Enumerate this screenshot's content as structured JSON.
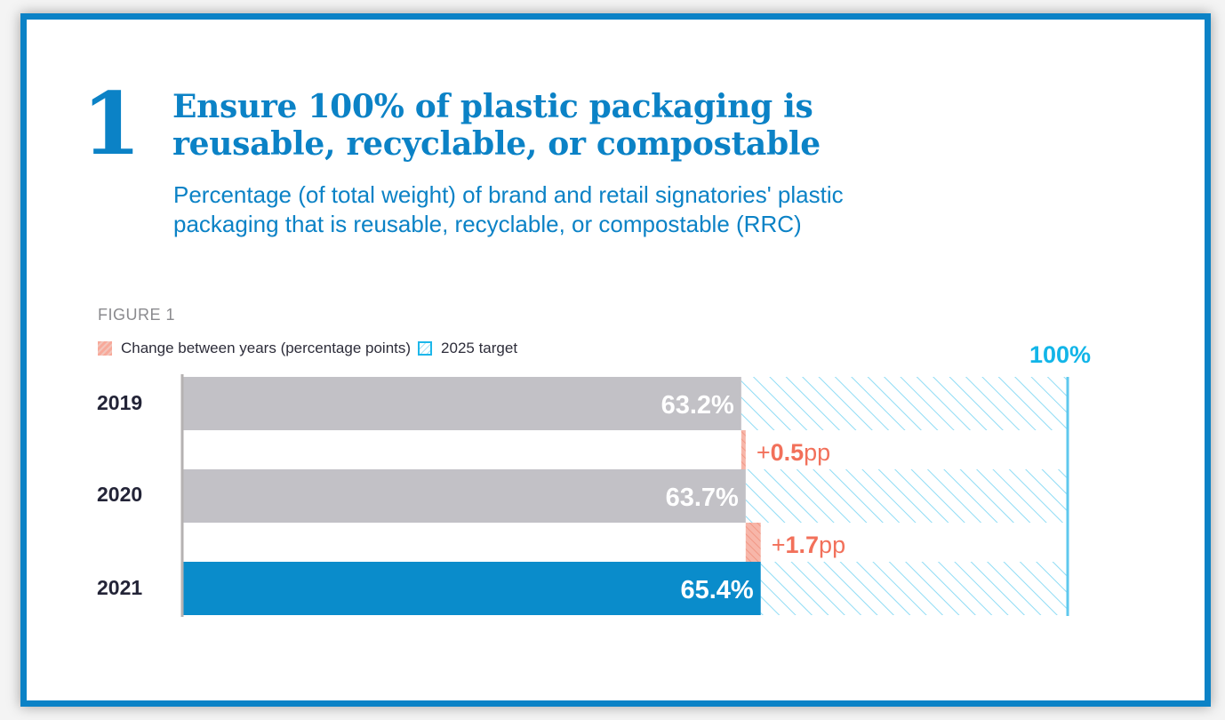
{
  "header": {
    "number": "1",
    "title_line1": "Ensure 100% of plastic packaging is",
    "title_line2": "reusable, recyclable, or compostable",
    "subtitle_line1": "Percentage (of total weight) of brand and retail signatories' plastic",
    "subtitle_line2": "packaging that is reusable, recyclable, or compostable (RRC)"
  },
  "colors": {
    "frame": "#0b82c6",
    "bar_past": "#c2c1c6",
    "bar_current": "#0a8ccb",
    "change": "#f2705a",
    "target": "#1db7ea"
  },
  "chart_data": {
    "type": "bar",
    "orientation": "horizontal",
    "figure_label": "FIGURE 1",
    "legend": [
      {
        "label": "Change between years (percentage points)",
        "pattern": "hatched-red"
      },
      {
        "label": "2025 target",
        "pattern": "hatched-blue"
      }
    ],
    "categories": [
      "2019",
      "2020",
      "2021"
    ],
    "values": [
      63.2,
      63.7,
      65.4
    ],
    "value_labels": [
      "63.2%",
      "63.7%",
      "65.4%"
    ],
    "changes": [
      {
        "from": "2019",
        "to": "2020",
        "value": 0.5,
        "prefix": "+",
        "number": "0.5",
        "unit": "pp"
      },
      {
        "from": "2020",
        "to": "2021",
        "value": 1.7,
        "prefix": "+",
        "number": "1.7",
        "unit": "pp"
      }
    ],
    "target": {
      "value": 100,
      "label": "100%",
      "year": "2025"
    },
    "xlim": [
      0,
      100
    ],
    "legend_position": "top-left"
  }
}
